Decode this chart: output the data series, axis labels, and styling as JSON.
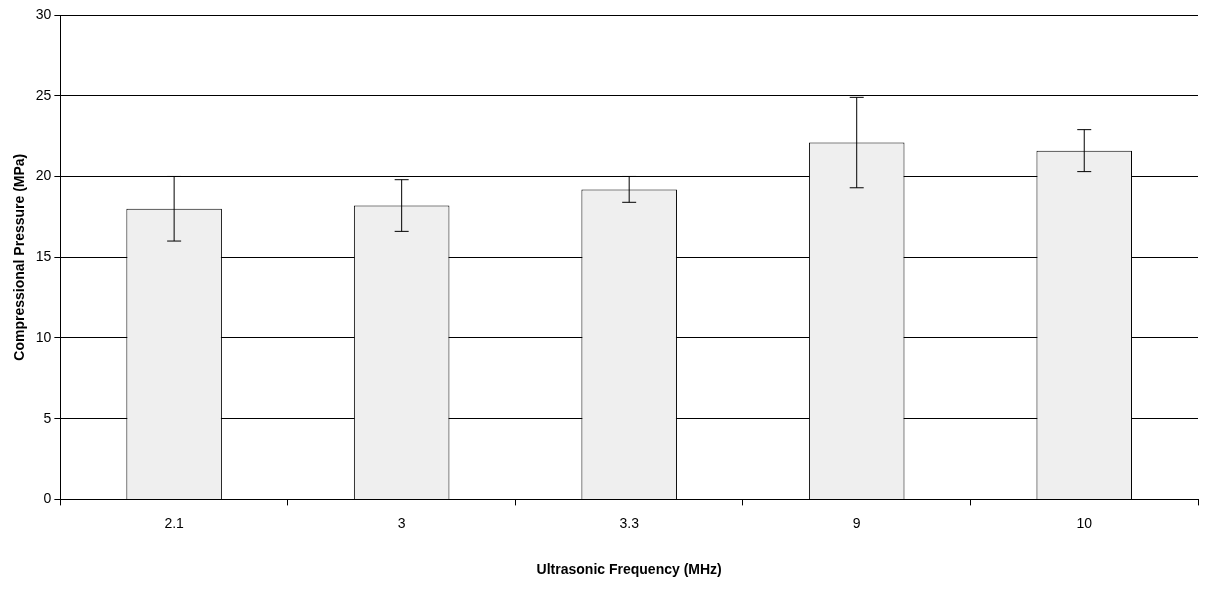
{
  "chart_data": {
    "type": "bar",
    "xlabel": "Ultrasonic Frequency (MHz)",
    "ylabel": "Compressional Pressure (MPa)",
    "categories": [
      "2.1",
      "3",
      "3.3",
      "9",
      "10"
    ],
    "values": [
      18.0,
      18.2,
      19.2,
      22.1,
      21.6
    ],
    "errors": [
      2.0,
      1.6,
      0.8,
      2.8,
      1.3
    ],
    "color": "#efefef",
    "ylim": [
      0,
      30
    ],
    "yticks": [
      0,
      5,
      10,
      15,
      20,
      25,
      30
    ],
    "grid": "y",
    "legend": false
  }
}
